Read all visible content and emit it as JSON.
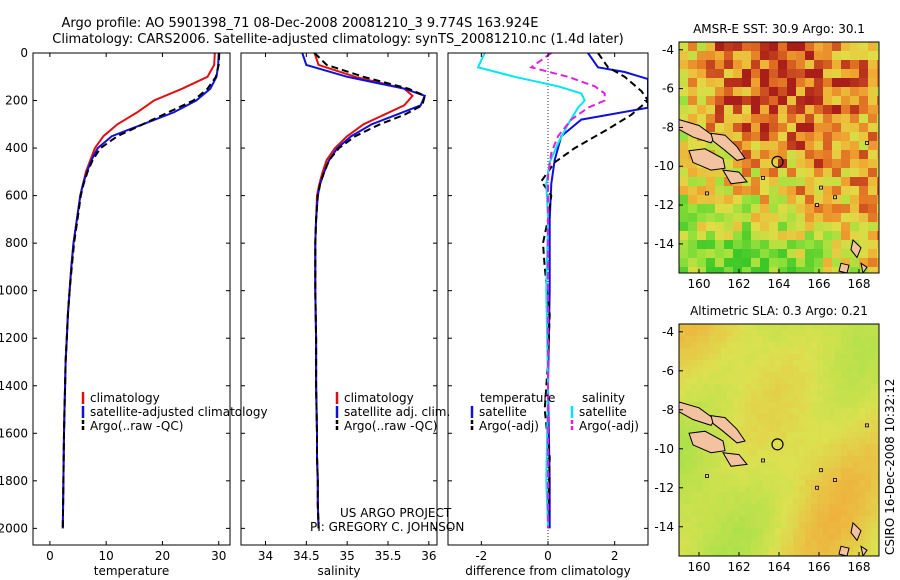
{
  "title": {
    "line1": "Argo profile: AO 5901398_71 08-Dec-2008 20081210_3 9.774S 163.924E",
    "line2": "Climatology: CARS2006. Satellite-adjusted climatology: synTS_20081210.nc (1.4d later)"
  },
  "credits": {
    "line1": "US ARGO PROJECT",
    "line2": "PI: GREGORY C. JOHNSON"
  },
  "stamp": "CSIRO 16-Dec-2008 10:32:12",
  "colors": {
    "red": "#e01010",
    "blue": "#1010dd",
    "black": "#000000",
    "cyan": "#00e6ef",
    "magenta": "#e020e0"
  },
  "chart_data": [
    {
      "type": "line",
      "xlabel": "temperature",
      "xlim": [
        -3,
        32
      ],
      "ylim": [
        2070,
        0
      ],
      "xticks": [
        0,
        10,
        20,
        30
      ],
      "yticks": [
        0,
        200,
        400,
        600,
        800,
        1000,
        1200,
        1400,
        1600,
        1800,
        2000
      ],
      "legend": {
        "placement": "lower-right",
        "entries": [
          "climatology",
          "satellite-adjusted climatology",
          "Argo(..raw -QC)"
        ]
      },
      "series": [
        {
          "name": "climatology",
          "color": "red",
          "style": "solid",
          "x": [
            29.3,
            29.2,
            28.0,
            23.5,
            18.5,
            15.5,
            12.0,
            9.5,
            8.0,
            7.2,
            6.4,
            5.9,
            5.4,
            4.8,
            4.2,
            3.8,
            3.5,
            3.2,
            3.0,
            2.8,
            2.7,
            2.6,
            2.5,
            2.45,
            2.4,
            2.35,
            2.3
          ],
          "y": [
            0,
            50,
            100,
            150,
            200,
            250,
            300,
            350,
            400,
            450,
            500,
            550,
            600,
            700,
            800,
            900,
            1000,
            1100,
            1200,
            1300,
            1400,
            1500,
            1600,
            1700,
            1800,
            1900,
            2000
          ]
        },
        {
          "name": "satellite-adjusted climatology",
          "color": "blue",
          "style": "solid",
          "x": [
            30.0,
            29.9,
            29.6,
            28.5,
            26.0,
            22.0,
            16.5,
            11.0,
            8.5,
            7.4,
            6.6,
            5.9,
            5.4,
            4.8,
            4.2,
            3.8,
            3.5,
            3.2,
            3.0,
            2.8,
            2.7,
            2.6,
            2.5,
            2.45,
            2.4,
            2.35,
            2.3
          ],
          "y": [
            0,
            50,
            100,
            150,
            200,
            250,
            300,
            350,
            400,
            450,
            500,
            550,
            600,
            700,
            800,
            900,
            1000,
            1100,
            1200,
            1300,
            1400,
            1500,
            1600,
            1700,
            1800,
            1900,
            2000
          ]
        },
        {
          "name": "Argo(..raw -QC)",
          "color": "black",
          "style": "dashed",
          "x": [
            30.1,
            30.0,
            29.5,
            28.0,
            25.5,
            21.0,
            16.5,
            12.0,
            9.0,
            7.6,
            6.7,
            6.0,
            5.5,
            4.9,
            4.3,
            3.9,
            3.5,
            3.2,
            3.0,
            2.8,
            2.7,
            2.6,
            2.5,
            2.45,
            2.4,
            2.35,
            2.3
          ],
          "y": [
            0,
            50,
            100,
            150,
            200,
            250,
            300,
            350,
            400,
            450,
            500,
            550,
            600,
            700,
            800,
            900,
            1000,
            1100,
            1200,
            1300,
            1400,
            1500,
            1600,
            1700,
            1800,
            1900,
            2000
          ]
        }
      ]
    },
    {
      "type": "line",
      "xlabel": "salinity",
      "xlim": [
        33.7,
        36.1
      ],
      "ylim": [
        2070,
        0
      ],
      "xticks": [
        34,
        34.5,
        35,
        35.5,
        36
      ],
      "yticks": [
        0,
        200,
        400,
        600,
        800,
        1000,
        1200,
        1400,
        1600,
        1800,
        2000
      ],
      "legend": {
        "placement": "lower-right",
        "entries": [
          "climatology",
          "satellite adj. clim.",
          "Argo(..raw -QC)"
        ]
      },
      "series": [
        {
          "name": "climatology",
          "color": "red",
          "style": "solid",
          "x": [
            34.6,
            34.65,
            35.1,
            35.7,
            35.8,
            35.7,
            35.45,
            35.2,
            35.0,
            34.85,
            34.75,
            34.7,
            34.66,
            34.63,
            34.62,
            34.61,
            34.61,
            34.61,
            34.62,
            34.62,
            34.63,
            34.63,
            34.64,
            34.64,
            34.65
          ],
          "y": [
            0,
            50,
            100,
            150,
            180,
            220,
            260,
            300,
            350,
            400,
            450,
            500,
            550,
            600,
            700,
            800,
            900,
            1000,
            1200,
            1400,
            1600,
            1700,
            1800,
            1900,
            2000
          ]
        },
        {
          "name": "satellite adj. clim.",
          "color": "blue",
          "style": "solid",
          "x": [
            34.45,
            34.5,
            35.0,
            35.7,
            35.95,
            35.9,
            35.6,
            35.3,
            35.05,
            34.88,
            34.78,
            34.72,
            34.67,
            34.64,
            34.62,
            34.61,
            34.61,
            34.61,
            34.62,
            34.62,
            34.63,
            34.63,
            34.64,
            34.64,
            34.65
          ],
          "y": [
            0,
            50,
            100,
            150,
            180,
            220,
            260,
            300,
            350,
            400,
            450,
            500,
            550,
            600,
            700,
            800,
            900,
            1000,
            1200,
            1400,
            1600,
            1700,
            1800,
            1900,
            2000
          ]
        },
        {
          "name": "Argo(..raw -QC)",
          "color": "black",
          "style": "dashed",
          "x": [
            34.6,
            34.75,
            35.2,
            35.75,
            35.95,
            35.92,
            35.7,
            35.4,
            35.1,
            34.9,
            34.78,
            34.72,
            34.67,
            34.64,
            34.62,
            34.61,
            34.61,
            34.61,
            34.62,
            34.62,
            34.63,
            34.63,
            34.64,
            34.64,
            34.65
          ],
          "y": [
            0,
            50,
            100,
            150,
            180,
            220,
            260,
            300,
            350,
            400,
            450,
            500,
            550,
            600,
            700,
            800,
            900,
            1000,
            1200,
            1400,
            1600,
            1700,
            1800,
            1900,
            2000
          ]
        }
      ]
    },
    {
      "type": "line",
      "xlabel": "difference from climatology",
      "xlim": [
        -3,
        3
      ],
      "ylim": [
        2070,
        0
      ],
      "xticks": [
        -2,
        0,
        2
      ],
      "yticks": [
        0,
        200,
        400,
        600,
        800,
        1000,
        1200,
        1400,
        1600,
        1800,
        2000
      ],
      "legend": {
        "placement": "lower-right",
        "headers": [
          "temperature",
          "salinity"
        ],
        "entries": [
          "satellite",
          "Argo(-adj)",
          "satellite",
          "Argo(-adj)"
        ]
      },
      "series": [
        {
          "name": "temperature satellite",
          "color": "blue",
          "style": "solid",
          "x": [
            1.2,
            1.5,
            2.3,
            3.0,
            3.0,
            3.0,
            1.0,
            0.4,
            0.2,
            0.1,
            0.05,
            0.05,
            0.0,
            0.05,
            0.05
          ],
          "y": [
            0,
            60,
            80,
            110,
            200,
            230,
            280,
            350,
            450,
            550,
            700,
            1000,
            1400,
            1800,
            2000
          ]
        },
        {
          "name": "temperature Argo(-adj)",
          "color": "black",
          "style": "dashed",
          "x": [
            1.5,
            1.8,
            2.3,
            2.8,
            3.0,
            2.5,
            1.8,
            0.8,
            0.2,
            -0.2,
            0.1,
            0.0,
            -0.15,
            -0.1,
            0.05,
            0.0,
            -0.1,
            0.05,
            0.0
          ],
          "y": [
            0,
            60,
            100,
            160,
            200,
            260,
            320,
            400,
            460,
            540,
            600,
            700,
            800,
            900,
            1100,
            1300,
            1500,
            1700,
            2000
          ]
        },
        {
          "name": "salinity satellite",
          "color": "cyan",
          "style": "solid",
          "x": [
            -1.9,
            -2.1,
            -1.0,
            0.3,
            1.0,
            1.1,
            0.9,
            0.6,
            0.3,
            0.05,
            -0.05,
            0.0,
            -0.05,
            0.0,
            -0.05,
            0.0
          ],
          "y": [
            0,
            60,
            100,
            140,
            170,
            200,
            230,
            300,
            380,
            460,
            550,
            700,
            1000,
            1400,
            1800,
            2000
          ]
        },
        {
          "name": "salinity Argo(-adj)",
          "color": "magenta",
          "style": "dashed",
          "x": [
            0.1,
            -0.5,
            0.6,
            1.4,
            1.7,
            1.7,
            1.2,
            0.7,
            0.3,
            0.1,
            0.0,
            0.0,
            0.0
          ],
          "y": [
            0,
            60,
            100,
            140,
            170,
            200,
            230,
            280,
            350,
            420,
            520,
            700,
            2000
          ]
        }
      ]
    },
    {
      "type": "heatmap",
      "title": "AMSR-E SST: 30.9 Argo: 30.1",
      "xlim": [
        159,
        169
      ],
      "ylim": [
        -15.5,
        -3.6
      ],
      "xticks": [
        160,
        162,
        164,
        166,
        168
      ],
      "yticks": [
        -4,
        -6,
        -8,
        -10,
        -12,
        -14
      ],
      "marker": {
        "lon": 163.924,
        "lat": -9.774
      }
    },
    {
      "type": "heatmap",
      "title": "Altimetric SLA: 0.3 Argo: 0.21",
      "xlim": [
        159,
        169
      ],
      "ylim": [
        -15.5,
        -3.6
      ],
      "xticks": [
        160,
        162,
        164,
        166,
        168
      ],
      "yticks": [
        -4,
        -6,
        -8,
        -10,
        -12,
        -14
      ],
      "marker": {
        "lon": 163.924,
        "lat": -9.774
      }
    }
  ]
}
